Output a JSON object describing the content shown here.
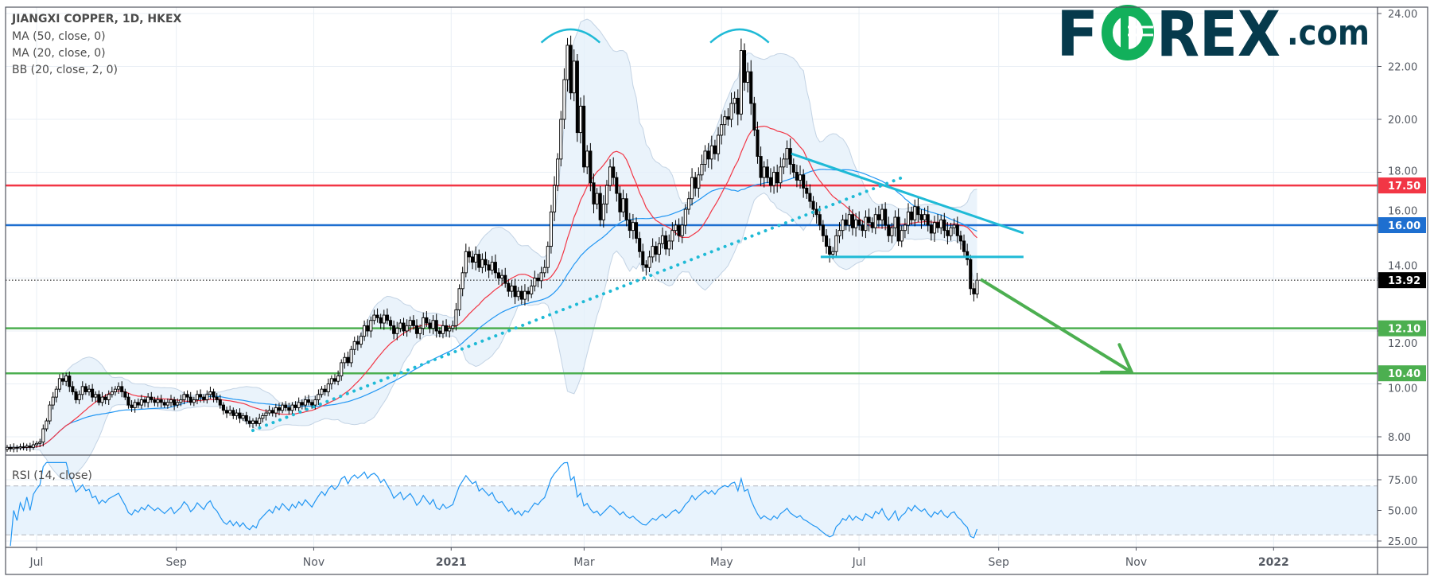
{
  "header": {
    "title": "JIANGXI COPPER, 1D, HKEX",
    "indicators": [
      "MA (50, close, 0)",
      "MA (20, close, 0)",
      "BB (20, close, 2, 0)"
    ]
  },
  "rsi_pane": {
    "label": "RSI (14, close)"
  },
  "logo": {
    "text": "FOREX.com",
    "left": "F",
    "o": "O",
    "right": "REX",
    "suffix": ".com",
    "color": "#063a4c",
    "accent": "#12b05b"
  },
  "chart_data": {
    "type": "candlestick",
    "symbol": "JIANGXI COPPER",
    "interval": "1D",
    "exchange": "HKEX",
    "closes": [
      7.6,
      7.55,
      7.6,
      7.58,
      7.62,
      7.6,
      7.65,
      7.6,
      7.7,
      7.75,
      7.8,
      8.3,
      8.6,
      9.2,
      9.5,
      9.8,
      10.2,
      10.1,
      10.3,
      9.9,
      9.7,
      9.4,
      9.6,
      9.9,
      9.7,
      9.8,
      9.5,
      9.6,
      9.3,
      9.5,
      9.4,
      9.6,
      9.7,
      9.8,
      9.9,
      9.7,
      9.5,
      9.2,
      9.1,
      9.3,
      9.2,
      9.4,
      9.3,
      9.5,
      9.4,
      9.3,
      9.4,
      9.3,
      9.2,
      9.3,
      9.4,
      9.2,
      9.3,
      9.4,
      9.6,
      9.5,
      9.3,
      9.4,
      9.6,
      9.5,
      9.4,
      9.6,
      9.7,
      9.5,
      9.4,
      9.2,
      9.0,
      8.9,
      9.0,
      8.8,
      8.9,
      8.7,
      8.8,
      8.6,
      8.5,
      8.6,
      8.5,
      8.7,
      8.8,
      8.9,
      9.0,
      8.9,
      9.1,
      9.0,
      9.2,
      9.1,
      9.0,
      9.2,
      9.1,
      9.3,
      9.2,
      9.4,
      9.3,
      9.2,
      9.4,
      9.6,
      9.8,
      9.7,
      10.0,
      10.2,
      10.1,
      10.3,
      10.8,
      11.0,
      10.8,
      11.3,
      11.6,
      11.5,
      11.8,
      12.2,
      12.0,
      12.4,
      12.6,
      12.5,
      12.3,
      12.6,
      12.4,
      12.2,
      11.9,
      12.1,
      12.3,
      12.0,
      12.2,
      12.4,
      12.2,
      11.9,
      12.1,
      12.5,
      12.3,
      12.1,
      12.4,
      12.0,
      11.9,
      12.2,
      12.0,
      12.1,
      12.2,
      12.8,
      13.6,
      14.2,
      15.0,
      14.8,
      14.6,
      14.9,
      14.4,
      14.7,
      14.5,
      14.3,
      14.6,
      14.2,
      14.0,
      14.1,
      13.8,
      13.5,
      13.7,
      13.3,
      13.5,
      13.2,
      13.5,
      13.4,
      13.7,
      14.0,
      13.9,
      14.2,
      14.4,
      15.2,
      16.5,
      17.5,
      18.5,
      20.0,
      21.5,
      22.8,
      21.0,
      22.2,
      19.5,
      20.5,
      18.2,
      18.8,
      17.6,
      16.8,
      17.2,
      16.2,
      16.8,
      17.5,
      18.2,
      17.8,
      17.2,
      16.5,
      17.0,
      16.2,
      15.8,
      16.1,
      15.5,
      15.0,
      14.5,
      14.4,
      14.8,
      15.2,
      14.9,
      15.3,
      15.6,
      15.1,
      15.4,
      15.8,
      16.0,
      15.6,
      16.0,
      16.6,
      17.0,
      17.8,
      17.4,
      17.9,
      18.3,
      18.8,
      18.5,
      19.0,
      18.7,
      19.4,
      19.8,
      20.1,
      20.0,
      20.6,
      20.8,
      20.2,
      22.6,
      21.4,
      21.8,
      20.6,
      19.6,
      18.6,
      17.8,
      18.2,
      17.8,
      17.5,
      18.0,
      17.6,
      18.2,
      18.5,
      18.9,
      18.3,
      18.0,
      17.7,
      17.9,
      17.4,
      17.2,
      16.9,
      16.6,
      16.4,
      16.0,
      15.6,
      15.2,
      14.9,
      15.0,
      15.6,
      15.8,
      16.2,
      16.0,
      16.4,
      15.9,
      16.2,
      16.0,
      15.8,
      16.3,
      16.1,
      15.9,
      16.4,
      16.2,
      16.6,
      16.0,
      15.6,
      15.9,
      16.3,
      15.4,
      15.8,
      16.0,
      16.5,
      16.2,
      16.7,
      16.4,
      16.2,
      16.4,
      16.0,
      15.7,
      16.1,
      15.9,
      16.2,
      15.8,
      15.6,
      15.9,
      16.0,
      15.6,
      15.4,
      15.0,
      14.7,
      13.6,
      13.4,
      13.92
    ],
    "price_axis": {
      "range": [
        7.3,
        24.25
      ],
      "ticks": [
        "8.00",
        "10.00",
        "12.00",
        "14.00",
        "16.00",
        "18.00",
        "20.00",
        "22.00",
        "24.00"
      ]
    },
    "rsi_axis": {
      "range": [
        20,
        90
      ],
      "ticks": [
        "25.00",
        "50.00",
        "75.00"
      ],
      "band": [
        30,
        70
      ]
    },
    "time_axis": [
      {
        "label": "Jul",
        "date": "2020-07-01",
        "bold": false
      },
      {
        "label": "Sep",
        "date": "2020-09-01",
        "bold": false
      },
      {
        "label": "Nov",
        "date": "2020-11-01",
        "bold": false
      },
      {
        "label": "2021",
        "date": "2021-01-01",
        "bold": true
      },
      {
        "label": "Mar",
        "date": "2021-03-01",
        "bold": false
      },
      {
        "label": "May",
        "date": "2021-05-01",
        "bold": false
      },
      {
        "label": "Jul",
        "date": "2021-07-01",
        "bold": false
      },
      {
        "label": "Sep",
        "date": "2021-09-01",
        "bold": false
      },
      {
        "label": "Nov",
        "date": "2021-11-01",
        "bold": false
      },
      {
        "label": "2022",
        "date": "2022-01-01",
        "bold": true
      }
    ],
    "current_price": {
      "value": 13.92,
      "label": "13.92",
      "color": "#000000"
    },
    "levels": [
      {
        "value": 17.5,
        "label": "17.50",
        "color": "#f23645"
      },
      {
        "value": 16.0,
        "label": "16.00",
        "color": "#1e6fd0"
      },
      {
        "value": 12.1,
        "label": "12.10",
        "color": "#4caf50"
      },
      {
        "value": 10.4,
        "label": "10.40",
        "color": "#4caf50"
      }
    ],
    "trendlines": [
      {
        "name": "descending-resistance",
        "from": [
          "2021-06-01",
          18.7
        ],
        "to": [
          "2021-09-12",
          15.7
        ],
        "color": "#1fbad6",
        "style": "solid"
      },
      {
        "name": "neckline-support",
        "from": [
          "2021-06-14",
          14.8
        ],
        "to": [
          "2021-09-12",
          14.8
        ],
        "color": "#1fbad6",
        "style": "solid"
      },
      {
        "name": "rising-trendline",
        "from": [
          "2020-10-05",
          8.24
        ],
        "to": [
          "2021-07-21",
          17.83
        ],
        "color": "#1fbad6",
        "style": "dotted"
      }
    ],
    "arcs": [
      {
        "name": "peak-1",
        "center": "2021-02-23",
        "half_width_days": 13,
        "top": 23.4,
        "ends": 22.9,
        "color": "#1fbad6"
      },
      {
        "name": "peak-2",
        "center": "2021-05-09",
        "half_width_days": 13,
        "top": 23.4,
        "ends": 22.9,
        "color": "#1fbad6"
      }
    ],
    "arrow": {
      "from": [
        "2021-08-24",
        13.95
      ],
      "to": [
        "2021-10-30",
        10.44
      ],
      "color": "#4caf50"
    },
    "indicators": {
      "ma50_color": "#2196f3",
      "ma20_color": "#f23645",
      "bb_fill": "#e3effa",
      "bb_border": "#c3d3e4",
      "rsi_color": "#2196f3",
      "rsi_band_fill": "#e8f3fd"
    }
  }
}
